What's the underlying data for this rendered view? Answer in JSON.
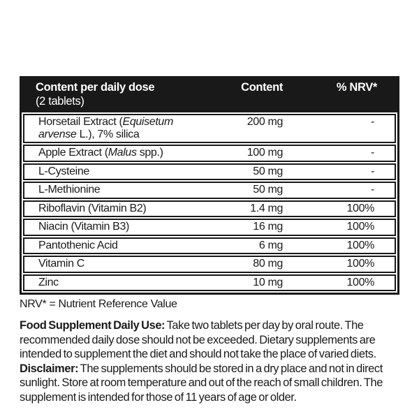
{
  "colors": {
    "ink": "#191919",
    "paper": "#ffffff"
  },
  "table": {
    "header": {
      "name_line1": "Content per daily dose",
      "name_line2": "(2 tablets)",
      "content": "Content",
      "nrv": "% NRV*"
    },
    "rows": [
      {
        "name": [
          {
            "text": "Horsetail Extract ("
          },
          {
            "text": "Equisetum arvense",
            "italic": true
          },
          {
            "text": " L.), 7% silica"
          }
        ],
        "content": "200 mg",
        "nrv": "-"
      },
      {
        "name": [
          {
            "text": "Apple Extract ("
          },
          {
            "text": "Malus",
            "italic": true
          },
          {
            "text": " spp.)"
          }
        ],
        "content": "100 mg",
        "nrv": "-"
      },
      {
        "name": [
          {
            "text": "L-Cysteine"
          }
        ],
        "content": "50 mg",
        "nrv": "-"
      },
      {
        "name": [
          {
            "text": "L-Methionine"
          }
        ],
        "content": "50 mg",
        "nrv": "-"
      },
      {
        "name": [
          {
            "text": "Riboflavin (Vitamin B2)"
          }
        ],
        "content": "1.4 mg",
        "nrv": "100%"
      },
      {
        "name": [
          {
            "text": "Niacin (Vitamin B3)"
          }
        ],
        "content": "16 mg",
        "nrv": "100%"
      },
      {
        "name": [
          {
            "text": "Pantothenic Acid"
          }
        ],
        "content": "6 mg",
        "nrv": "100%"
      },
      {
        "name": [
          {
            "text": "Vitamin C"
          }
        ],
        "content": "80 mg",
        "nrv": "100%"
      },
      {
        "name": [
          {
            "text": "Zinc"
          }
        ],
        "content": "10 mg",
        "nrv": "100%"
      }
    ],
    "footnote": "NRV* = Nutrient Reference Value"
  },
  "paragraphs": [
    {
      "label": "Food Supplement Daily Use:",
      "text": " Take two tablets per day by oral route. The recommended daily dose should not be exceeded. Dietary supplements are intended to supplement the diet and should not take the place of varied diets."
    },
    {
      "label": "Disclaimer:",
      "text": " The supplements should be stored in a dry place and not in direct sunlight. Store at room temperature and out of the reach of small children. The supplement is intended for those of 11 years of age or older."
    }
  ]
}
